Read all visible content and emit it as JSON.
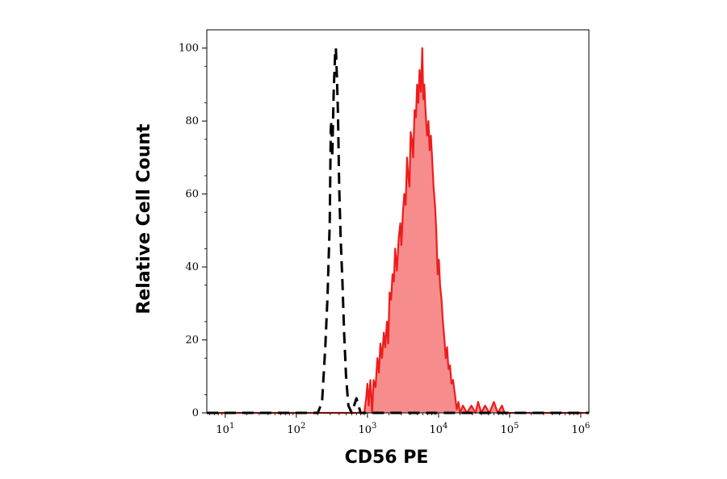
{
  "chart_data": {
    "type": "area",
    "title": "",
    "xlabel": "CD56 PE",
    "ylabel": "Relative Cell Count",
    "x_scale": "log",
    "xlim": [
      5.5,
      1300000
    ],
    "ylim": [
      0,
      105
    ],
    "grid": false,
    "legend": "none",
    "x_ticks": [
      {
        "value": 10,
        "base": "10",
        "exp": "1"
      },
      {
        "value": 100,
        "base": "10",
        "exp": "2"
      },
      {
        "value": 1000,
        "base": "10",
        "exp": "3"
      },
      {
        "value": 10000,
        "base": "10",
        "exp": "4"
      },
      {
        "value": 100000,
        "base": "10",
        "exp": "5"
      },
      {
        "value": 1000000,
        "base": "10",
        "exp": "6"
      }
    ],
    "y_ticks": [
      0,
      20,
      40,
      60,
      80,
      100
    ],
    "series": [
      {
        "style": "dashed",
        "color": "#000000",
        "fill": "none",
        "points": [
          [
            5.5,
            0
          ],
          [
            160,
            0
          ],
          [
            200,
            0
          ],
          [
            230,
            3
          ],
          [
            255,
            18
          ],
          [
            275,
            32
          ],
          [
            295,
            52
          ],
          [
            305,
            78
          ],
          [
            312,
            80
          ],
          [
            320,
            70
          ],
          [
            335,
            88
          ],
          [
            350,
            98
          ],
          [
            360,
            100
          ],
          [
            372,
            92
          ],
          [
            385,
            82
          ],
          [
            400,
            62
          ],
          [
            420,
            48
          ],
          [
            445,
            36
          ],
          [
            470,
            22
          ],
          [
            500,
            10
          ],
          [
            540,
            2
          ],
          [
            600,
            0
          ],
          [
            700,
            4
          ],
          [
            800,
            0
          ],
          [
            1300000,
            0
          ]
        ]
      },
      {
        "style": "solid",
        "color": "#ee1c1c",
        "fill": "#f78c8c",
        "points": [
          [
            5.5,
            0
          ],
          [
            900,
            0
          ],
          [
            960,
            4
          ],
          [
            1000,
            8
          ],
          [
            1040,
            2
          ],
          [
            1100,
            9
          ],
          [
            1160,
            0
          ],
          [
            1220,
            9
          ],
          [
            1300,
            7
          ],
          [
            1380,
            15
          ],
          [
            1450,
            11
          ],
          [
            1520,
            19
          ],
          [
            1600,
            15
          ],
          [
            1700,
            22
          ],
          [
            1780,
            18
          ],
          [
            1880,
            25
          ],
          [
            1960,
            19
          ],
          [
            2050,
            33
          ],
          [
            2150,
            31
          ],
          [
            2250,
            38
          ],
          [
            2350,
            36
          ],
          [
            2450,
            45
          ],
          [
            2600,
            39
          ],
          [
            2750,
            48
          ],
          [
            2900,
            52
          ],
          [
            3000,
            46
          ],
          [
            3150,
            55
          ],
          [
            3300,
            60
          ],
          [
            3450,
            57
          ],
          [
            3600,
            70
          ],
          [
            3750,
            65
          ],
          [
            3900,
            62
          ],
          [
            4050,
            77
          ],
          [
            4200,
            75
          ],
          [
            4400,
            70
          ],
          [
            4600,
            83
          ],
          [
            4800,
            81
          ],
          [
            5000,
            90
          ],
          [
            5200,
            85
          ],
          [
            5400,
            94
          ],
          [
            5650,
            88
          ],
          [
            5900,
            100
          ],
          [
            6100,
            86
          ],
          [
            6300,
            90
          ],
          [
            6600,
            82
          ],
          [
            6900,
            76
          ],
          [
            7200,
            80
          ],
          [
            7500,
            72
          ],
          [
            7800,
            76
          ],
          [
            8100,
            70
          ],
          [
            8500,
            62
          ],
          [
            8900,
            57
          ],
          [
            9300,
            50
          ],
          [
            9700,
            38
          ],
          [
            10100,
            42
          ],
          [
            10500,
            35
          ],
          [
            11000,
            31
          ],
          [
            11500,
            25
          ],
          [
            12000,
            21
          ],
          [
            12600,
            15
          ],
          [
            13200,
            18
          ],
          [
            13800,
            12
          ],
          [
            14500,
            13
          ],
          [
            15200,
            8
          ],
          [
            16000,
            9
          ],
          [
            17000,
            5
          ],
          [
            18000,
            1
          ],
          [
            19000,
            3
          ],
          [
            20000,
            0
          ],
          [
            22000,
            2
          ],
          [
            25000,
            0
          ],
          [
            29000,
            2
          ],
          [
            33000,
            0
          ],
          [
            36000,
            3
          ],
          [
            40000,
            0
          ],
          [
            45000,
            2
          ],
          [
            52000,
            0
          ],
          [
            60000,
            3
          ],
          [
            68000,
            0
          ],
          [
            78000,
            2
          ],
          [
            85000,
            0
          ],
          [
            1300000,
            0
          ]
        ]
      }
    ]
  }
}
